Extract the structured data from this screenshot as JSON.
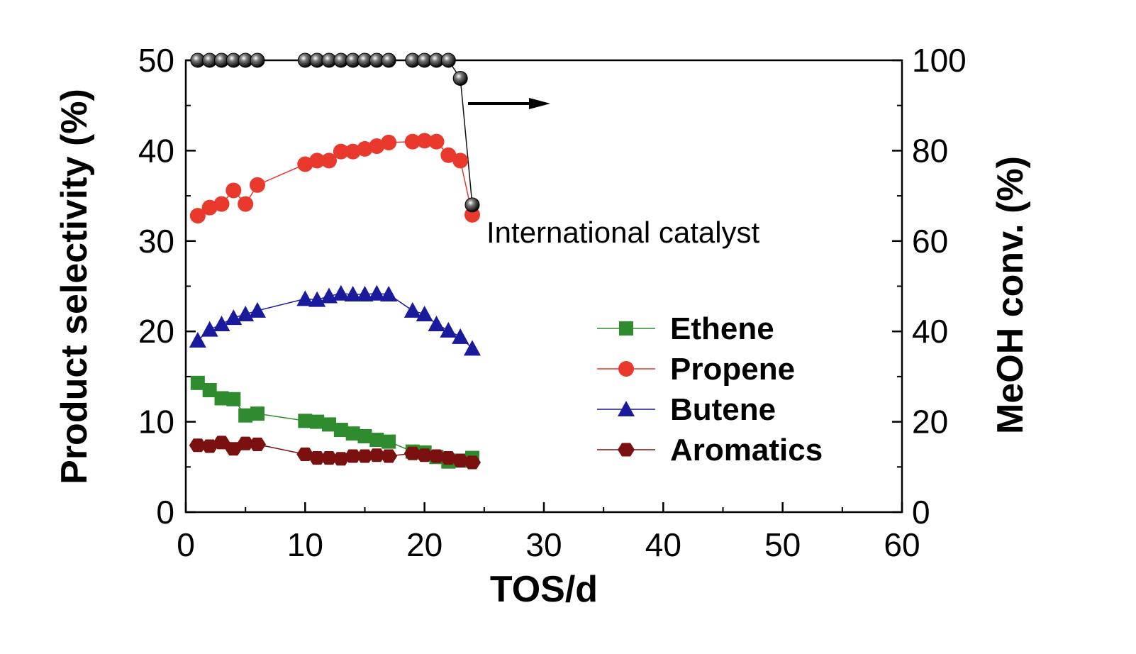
{
  "chart_data": {
    "type": "scatter",
    "xlabel": "TOS/d",
    "ylabel": "Product selectivity (%)",
    "y2label": "MeOH conv. (%)",
    "xlim": [
      0,
      60
    ],
    "ylim": [
      0,
      50
    ],
    "y2lim": [
      0,
      100
    ],
    "x_ticks": [
      "0",
      "10",
      "20",
      "30",
      "40",
      "50",
      "60"
    ],
    "y_ticks": [
      "0",
      "10",
      "20",
      "30",
      "40",
      "50"
    ],
    "y2_ticks": [
      "0",
      "20",
      "40",
      "60",
      "80",
      "100"
    ],
    "annotation": "International catalyst",
    "legend_position": "center-right",
    "grid": false,
    "series": [
      {
        "name": "Ethene",
        "marker": "square",
        "color": "#2e8b2e",
        "axis": "left",
        "x": [
          1,
          2,
          3,
          4,
          5,
          6,
          10,
          11,
          12,
          13,
          14,
          15,
          16,
          17,
          19,
          20,
          21,
          22,
          23,
          24
        ],
        "y": [
          14.3,
          13.5,
          12.6,
          12.5,
          10.7,
          10.9,
          10.1,
          10.0,
          9.7,
          9.1,
          8.7,
          8.4,
          8.0,
          7.8,
          6.7,
          6.6,
          6.1,
          5.6,
          5.7,
          6.0
        ]
      },
      {
        "name": "Propene",
        "marker": "circle",
        "color": "#e8392c",
        "axis": "left",
        "x": [
          1,
          2,
          3,
          4,
          5,
          6,
          10,
          11,
          12,
          13,
          14,
          15,
          16,
          17,
          19,
          20,
          21,
          22,
          23,
          24
        ],
        "y": [
          32.8,
          33.7,
          34.1,
          35.6,
          34.1,
          36.2,
          38.5,
          38.9,
          38.9,
          39.9,
          39.9,
          40.2,
          40.5,
          40.9,
          41.0,
          41.1,
          41.0,
          39.5,
          38.9,
          32.9
        ]
      },
      {
        "name": "Butene",
        "marker": "triangle",
        "color": "#1a1a9c",
        "axis": "left",
        "x": [
          1,
          2,
          3,
          4,
          5,
          6,
          10,
          11,
          12,
          13,
          14,
          15,
          16,
          17,
          19,
          20,
          21,
          22,
          23,
          24
        ],
        "y": [
          19.0,
          20.2,
          20.8,
          21.5,
          21.9,
          22.3,
          23.6,
          23.5,
          23.9,
          24.2,
          24.1,
          24.1,
          24.2,
          24.1,
          22.3,
          21.9,
          20.8,
          20.1,
          19.4,
          18.1
        ]
      },
      {
        "name": "Aromatics",
        "marker": "hexagon",
        "color": "#7a1010",
        "axis": "left",
        "x": [
          1,
          2,
          3,
          4,
          5,
          6,
          10,
          11,
          12,
          13,
          14,
          15,
          16,
          17,
          19,
          20,
          21,
          22,
          23,
          24
        ],
        "y": [
          7.4,
          7.3,
          7.7,
          7.0,
          7.6,
          7.5,
          6.4,
          6.0,
          6.0,
          5.9,
          6.2,
          6.2,
          6.3,
          6.2,
          6.5,
          6.3,
          6.2,
          6.0,
          5.7,
          5.5
        ]
      },
      {
        "name": "MeOH conv.",
        "marker": "sphere",
        "color": "#111111",
        "axis": "right",
        "x": [
          1,
          2,
          3,
          4,
          5,
          6,
          10,
          11,
          12,
          13,
          14,
          15,
          16,
          17,
          19,
          20,
          21,
          22,
          23,
          24
        ],
        "y": [
          100,
          100,
          100,
          100,
          100,
          100,
          100,
          100,
          100,
          100,
          100,
          100,
          100,
          100,
          100,
          100,
          100,
          100,
          96,
          68
        ]
      }
    ]
  }
}
